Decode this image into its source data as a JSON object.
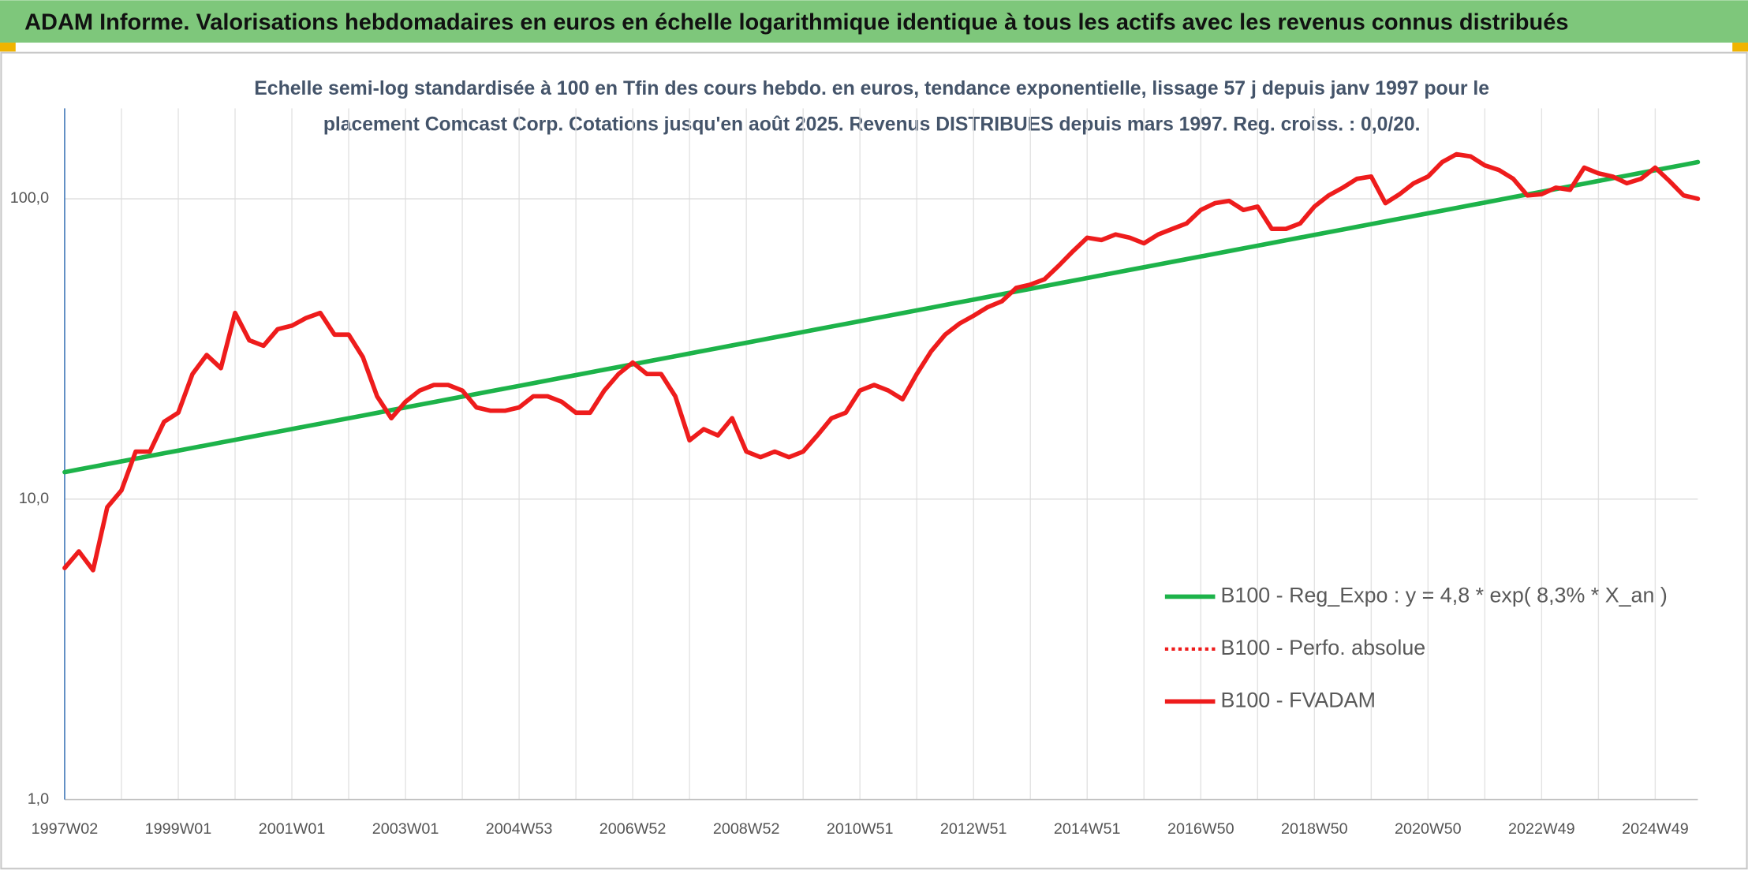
{
  "chart_data": {
    "type": "line",
    "title": "ADAM Informe. Valorisations hebdomadaires en euros en échelle logarithmique identique à tous les actifs avec les revenus connus distribués",
    "subtitle": [
      "Echelle semi-log standardisée à 100 en Tfin des cours hebdo. en euros, tendance exponentielle, lissage 57 j depuis janv 1997 pour le",
      "placement Comcast Corp. Cotations jusqu'en août 2025. Revenus DISTRIBUES depuis mars 1997. Reg. croiss. : 0,0/20."
    ],
    "log_scale": true,
    "grid": true,
    "legend_position": "right",
    "ylim": [
      1,
      200
    ],
    "yticks": [
      {
        "value": 1,
        "label": "1,0"
      },
      {
        "value": 10,
        "label": "10,0"
      },
      {
        "value": 100,
        "label": "100,0"
      }
    ],
    "categories": [
      "1997W02",
      null,
      null,
      null,
      null,
      null,
      null,
      null,
      "1999W01",
      null,
      null,
      null,
      null,
      null,
      null,
      null,
      "2001W01",
      null,
      null,
      null,
      null,
      null,
      null,
      null,
      "2003W01",
      null,
      null,
      null,
      null,
      null,
      null,
      null,
      "2004W53",
      null,
      null,
      null,
      null,
      null,
      null,
      null,
      "2006W52",
      null,
      null,
      null,
      null,
      null,
      null,
      null,
      "2008W52",
      null,
      null,
      null,
      null,
      null,
      null,
      null,
      "2010W51",
      null,
      null,
      null,
      null,
      null,
      null,
      null,
      "2012W51",
      null,
      null,
      null,
      null,
      null,
      null,
      null,
      "2014W51",
      null,
      null,
      null,
      null,
      null,
      null,
      null,
      "2016W50",
      null,
      null,
      null,
      null,
      null,
      null,
      null,
      "2018W50",
      null,
      null,
      null,
      null,
      null,
      null,
      null,
      "2020W50",
      null,
      null,
      null,
      null,
      null,
      null,
      null,
      "2022W49",
      null,
      null,
      null,
      null,
      null,
      null,
      null,
      "2024W49",
      null,
      null,
      null
    ],
    "series": [
      {
        "name": "B100 - Reg_Expo : y = 4,8 * exp( 8,3% *  X_an )",
        "color": "#1db34a",
        "line_style": "solid",
        "values": [
          12.3,
          12.56,
          12.82,
          13.09,
          13.36,
          13.64,
          13.92,
          14.22,
          14.51,
          14.81,
          15.12,
          15.44,
          15.76,
          16.09,
          16.43,
          16.77,
          17.12,
          17.48,
          17.84,
          18.22,
          18.6,
          18.98,
          19.38,
          19.79,
          20.2,
          20.62,
          21.05,
          21.49,
          21.94,
          22.4,
          22.87,
          23.35,
          23.83,
          24.33,
          24.84,
          25.36,
          25.88,
          26.43,
          26.98,
          27.54,
          28.12,
          28.71,
          29.31,
          29.92,
          30.54,
          31.18,
          31.83,
          32.5,
          33.17,
          33.86,
          34.57,
          35.29,
          36.03,
          36.78,
          37.55,
          38.33,
          39.14,
          39.96,
          40.79,
          41.64,
          42.51,
          43.4,
          44.31,
          45.23,
          46.17,
          47.13,
          48.12,
          49.12,
          50.15,
          51.2,
          52.27,
          53.36,
          54.48,
          55.62,
          56.78,
          57.97,
          59.18,
          60.41,
          61.68,
          62.96,
          64.27,
          65.61,
          66.98,
          68.38,
          69.81,
          71.27,
          72.76,
          74.28,
          75.83,
          77.41,
          79.03,
          80.68,
          82.37,
          84.09,
          85.85,
          87.64,
          89.46,
          91.33,
          93.24,
          95.19,
          97.17,
          99.2,
          101.28,
          103.39,
          105.55,
          107.75,
          110.0,
          112.3,
          114.65,
          117.04,
          119.49,
          121.98,
          124.5,
          127.1,
          129.76,
          132.5
        ]
      },
      {
        "name": "B100 - Perfo. absolue",
        "color": "#ee1c1c",
        "line_style": "dotted",
        "values": [
          5.9,
          6.7,
          5.8,
          9.4,
          10.7,
          14.4,
          14.4,
          18.1,
          19.4,
          26.1,
          30.2,
          27.3,
          41.7,
          33.8,
          32.4,
          36.8,
          37.8,
          40.1,
          41.7,
          35.3,
          35.3,
          29.7,
          22.0,
          18.6,
          21.1,
          23.0,
          24.0,
          24.0,
          23.0,
          20.2,
          19.7,
          19.7,
          20.2,
          22.0,
          22.0,
          21.1,
          19.4,
          19.4,
          23.0,
          26.1,
          28.5,
          26.1,
          26.1,
          22.0,
          15.7,
          17.1,
          16.3,
          18.6,
          14.4,
          13.8,
          14.4,
          13.8,
          14.4,
          16.3,
          18.6,
          19.4,
          23.0,
          24.0,
          23.0,
          21.5,
          26.1,
          31.0,
          35.3,
          38.4,
          40.8,
          43.6,
          45.6,
          50.5,
          51.8,
          54.0,
          59.9,
          66.9,
          74.2,
          72.9,
          76.1,
          74.2,
          71.1,
          76.1,
          79.4,
          82.8,
          91.8,
          96.7,
          98.4,
          91.8,
          94.2,
          79.4,
          79.4,
          82.8,
          94.2,
          102.6,
          108.9,
          116.6,
          118.6,
          96.7,
          103.6,
          112.7,
          118.6,
          132.5,
          140.7,
          138.4,
          129.2,
          124.7,
          116.6,
          102.6,
          103.6,
          108.9,
          107.1,
          127.0,
          121.6,
          118.6,
          112.7,
          116.6,
          127.0,
          114.6,
          102.6,
          100.0
        ]
      },
      {
        "name": "B100 - FVADAM",
        "color": "#ee1c1c",
        "line_style": "solid",
        "values": [
          5.9,
          6.7,
          5.8,
          9.4,
          10.7,
          14.4,
          14.4,
          18.1,
          19.4,
          26.1,
          30.2,
          27.3,
          41.7,
          33.8,
          32.4,
          36.8,
          37.8,
          40.1,
          41.7,
          35.3,
          35.3,
          29.7,
          22.0,
          18.6,
          21.1,
          23.0,
          24.0,
          24.0,
          23.0,
          20.2,
          19.7,
          19.7,
          20.2,
          22.0,
          22.0,
          21.1,
          19.4,
          19.4,
          23.0,
          26.1,
          28.5,
          26.1,
          26.1,
          22.0,
          15.7,
          17.1,
          16.3,
          18.6,
          14.4,
          13.8,
          14.4,
          13.8,
          14.4,
          16.3,
          18.6,
          19.4,
          23.0,
          24.0,
          23.0,
          21.5,
          26.1,
          31.0,
          35.3,
          38.4,
          40.8,
          43.6,
          45.6,
          50.5,
          51.8,
          54.0,
          59.9,
          66.9,
          74.2,
          72.9,
          76.1,
          74.2,
          71.1,
          76.1,
          79.4,
          82.8,
          91.8,
          96.7,
          98.4,
          91.8,
          94.2,
          79.4,
          79.4,
          82.8,
          94.2,
          102.6,
          108.9,
          116.6,
          118.6,
          96.7,
          103.6,
          112.7,
          118.6,
          132.5,
          140.7,
          138.4,
          129.2,
          124.7,
          116.6,
          102.6,
          103.6,
          108.9,
          107.1,
          127.0,
          121.6,
          118.6,
          112.7,
          116.6,
          127.0,
          114.6,
          102.6,
          100.0
        ]
      }
    ]
  }
}
